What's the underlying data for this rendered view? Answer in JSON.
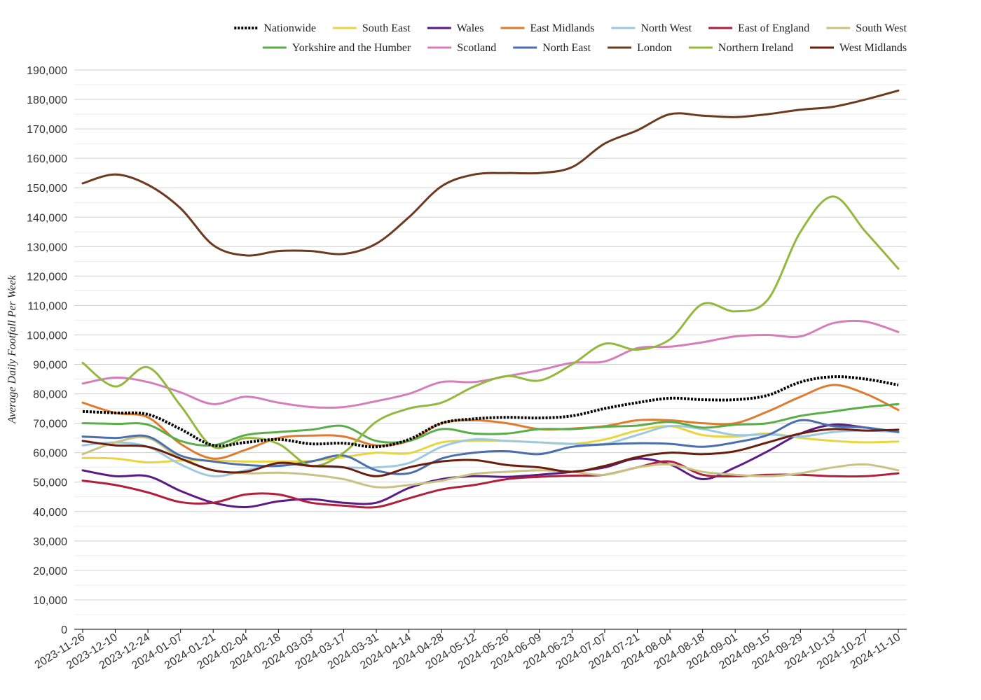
{
  "chart_data": {
    "type": "line",
    "ylabel": "Average Daily Footfall Per Week",
    "ylim": [
      0,
      190000
    ],
    "yticks": [
      0,
      10000,
      20000,
      30000,
      40000,
      50000,
      60000,
      70000,
      80000,
      90000,
      100000,
      110000,
      120000,
      130000,
      140000,
      150000,
      160000,
      170000,
      180000,
      190000
    ],
    "ytick_labels": [
      "0",
      "10,000",
      "20,000",
      "30,000",
      "40,000",
      "50,000",
      "60,000",
      "70,000",
      "80,000",
      "90,000",
      "100,000",
      "110,000",
      "120,000",
      "130,000",
      "140,000",
      "150,000",
      "160,000",
      "170,000",
      "180,000",
      "190,000"
    ],
    "xlim": [
      "2023-11-26",
      "2024-11-10"
    ],
    "xtick_labels": [
      "2023-11-26",
      "2023-12-10",
      "2023-12-24",
      "2024-01-07",
      "2024-01-21",
      "2024-02-04",
      "2024-02-18",
      "2024-03-03",
      "2024-03-17",
      "2024-03-31",
      "2024-04-14",
      "2024-04-28",
      "2024-05-12",
      "2024-05-26",
      "2024-06-09",
      "2024-06-23",
      "2024-07-07",
      "2024-07-21",
      "2024-08-04",
      "2024-08-18",
      "2024-09-01",
      "2024-09-15",
      "2024-09-29",
      "2024-10-13",
      "2024-10-27",
      "2024-11-10"
    ],
    "grid": true,
    "legend_position": "top",
    "series": [
      {
        "name": "Nationwide",
        "color": "#000000",
        "dashed": true,
        "x": [
          "2023-11-26",
          "2023-12-10",
          "2023-12-24",
          "2024-01-07",
          "2024-01-21",
          "2024-02-04",
          "2024-02-18",
          "2024-03-03",
          "2024-03-17",
          "2024-03-31",
          "2024-04-14",
          "2024-04-28",
          "2024-05-12",
          "2024-05-26",
          "2024-06-09",
          "2024-06-23",
          "2024-07-07",
          "2024-07-21",
          "2024-08-04",
          "2024-08-18",
          "2024-09-01",
          "2024-09-15",
          "2024-09-29",
          "2024-10-13",
          "2024-10-27",
          "2024-11-10"
        ],
        "values": [
          74000,
          73500,
          73000,
          68000,
          62500,
          63500,
          64500,
          63000,
          63200,
          62000,
          64500,
          70000,
          71500,
          72000,
          71800,
          72500,
          75000,
          77000,
          78500,
          78000,
          78000,
          79500,
          84000,
          85800,
          85000,
          83000
        ]
      },
      {
        "name": "South East",
        "color": "#e8d540",
        "x": [
          "2023-11-26",
          "2023-12-10",
          "2023-12-24",
          "2024-01-07",
          "2024-01-21",
          "2024-02-04",
          "2024-02-18",
          "2024-03-03",
          "2024-03-17",
          "2024-03-31",
          "2024-04-14",
          "2024-04-28",
          "2024-05-12",
          "2024-05-26",
          "2024-06-09",
          "2024-06-23",
          "2024-07-07",
          "2024-07-21",
          "2024-08-04",
          "2024-08-18",
          "2024-09-01",
          "2024-09-15",
          "2024-09-29",
          "2024-10-13",
          "2024-10-27",
          "2024-11-10"
        ],
        "values": [
          58200,
          58000,
          56700,
          57300,
          57300,
          57000,
          57000,
          57200,
          58500,
          60000,
          59800,
          63500,
          64000,
          64000,
          63500,
          63000,
          64500,
          67500,
          69000,
          66000,
          65500,
          66500,
          65000,
          64000,
          63500,
          63800
        ]
      },
      {
        "name": "Wales",
        "color": "#5b1a84",
        "x": [
          "2023-11-26",
          "2023-12-10",
          "2023-12-24",
          "2024-01-07",
          "2024-01-21",
          "2024-02-04",
          "2024-02-18",
          "2024-03-03",
          "2024-03-17",
          "2024-03-31",
          "2024-04-14",
          "2024-04-28",
          "2024-05-12",
          "2024-05-26",
          "2024-06-09",
          "2024-06-23",
          "2024-07-07",
          "2024-07-21",
          "2024-08-04",
          "2024-08-18",
          "2024-09-01",
          "2024-09-15",
          "2024-09-29",
          "2024-10-13",
          "2024-10-27",
          "2024-11-10"
        ],
        "values": [
          54000,
          52000,
          52000,
          47000,
          43000,
          41500,
          43500,
          44200,
          43000,
          43000,
          48000,
          51000,
          52000,
          51800,
          52500,
          53500,
          55000,
          58000,
          56000,
          51000,
          55000,
          60500,
          66500,
          69500,
          68500,
          67000
        ]
      },
      {
        "name": "East Midlands",
        "color": "#e07a2e",
        "x": [
          "2023-11-26",
          "2023-12-10",
          "2023-12-24",
          "2024-01-07",
          "2024-01-21",
          "2024-02-04",
          "2024-02-18",
          "2024-03-03",
          "2024-03-17",
          "2024-03-31",
          "2024-04-14",
          "2024-04-28",
          "2024-05-12",
          "2024-05-26",
          "2024-06-09",
          "2024-06-23",
          "2024-07-07",
          "2024-07-21",
          "2024-08-04",
          "2024-08-18",
          "2024-09-01",
          "2024-09-15",
          "2024-09-29",
          "2024-10-13",
          "2024-10-27",
          "2024-11-10"
        ],
        "values": [
          77000,
          73500,
          72000,
          63000,
          58000,
          61000,
          65000,
          65800,
          65500,
          62500,
          64000,
          70000,
          71000,
          70000,
          68000,
          68200,
          69000,
          71000,
          71000,
          70000,
          70000,
          74000,
          79000,
          83000,
          80000,
          74500
        ]
      },
      {
        "name": "North West",
        "color": "#9dc8e0",
        "x": [
          "2023-11-26",
          "2023-12-10",
          "2023-12-24",
          "2024-01-07",
          "2024-01-21",
          "2024-02-04",
          "2024-02-18",
          "2024-03-03",
          "2024-03-17",
          "2024-03-31",
          "2024-04-14",
          "2024-04-28",
          "2024-05-12",
          "2024-05-26",
          "2024-06-09",
          "2024-06-23",
          "2024-07-07",
          "2024-07-21",
          "2024-08-04",
          "2024-08-18",
          "2024-09-01",
          "2024-09-15",
          "2024-09-29",
          "2024-10-13",
          "2024-10-27",
          "2024-11-10"
        ],
        "values": [
          62500,
          63500,
          62000,
          56000,
          52000,
          54000,
          56000,
          55500,
          55000,
          55000,
          56500,
          62000,
          64500,
          64000,
          63500,
          63000,
          63000,
          66000,
          69000,
          68000,
          66000,
          66200,
          65500,
          67000,
          67500,
          67000
        ]
      },
      {
        "name": "East of England",
        "color": "#b0203c",
        "x": [
          "2023-11-26",
          "2023-12-10",
          "2023-12-24",
          "2024-01-07",
          "2024-01-21",
          "2024-02-04",
          "2024-02-18",
          "2024-03-03",
          "2024-03-17",
          "2024-03-31",
          "2024-04-14",
          "2024-04-28",
          "2024-05-12",
          "2024-05-26",
          "2024-06-09",
          "2024-06-23",
          "2024-07-07",
          "2024-07-21",
          "2024-08-04",
          "2024-08-18",
          "2024-09-01",
          "2024-09-15",
          "2024-09-29",
          "2024-10-13",
          "2024-10-27",
          "2024-11-10"
        ],
        "values": [
          50500,
          49000,
          46500,
          43200,
          43000,
          45800,
          45800,
          43000,
          42000,
          41500,
          44500,
          47500,
          49000,
          51000,
          51800,
          52200,
          52500,
          55000,
          57000,
          52500,
          52000,
          52500,
          52500,
          52000,
          52000,
          53000
        ]
      },
      {
        "name": "South West",
        "color": "#c8c284",
        "x": [
          "2023-11-26",
          "2023-12-10",
          "2023-12-24",
          "2024-01-07",
          "2024-01-21",
          "2024-02-04",
          "2024-02-18",
          "2024-03-03",
          "2024-03-17",
          "2024-03-31",
          "2024-04-14",
          "2024-04-28",
          "2024-05-12",
          "2024-05-26",
          "2024-06-09",
          "2024-06-23",
          "2024-07-07",
          "2024-07-21",
          "2024-08-04",
          "2024-08-18",
          "2024-09-01",
          "2024-09-15",
          "2024-09-29",
          "2024-10-13",
          "2024-10-27",
          "2024-11-10"
        ],
        "values": [
          59500,
          63500,
          65000,
          58000,
          54000,
          53000,
          53200,
          52500,
          51000,
          48300,
          49000,
          50500,
          52800,
          53500,
          54000,
          53500,
          52500,
          55000,
          56000,
          53500,
          52500,
          52000,
          53000,
          55000,
          56000,
          54000
        ]
      },
      {
        "name": "Yorkshire and the Humber",
        "color": "#5aae4a",
        "x": [
          "2023-11-26",
          "2023-12-10",
          "2023-12-24",
          "2024-01-07",
          "2024-01-21",
          "2024-02-04",
          "2024-02-18",
          "2024-03-03",
          "2024-03-17",
          "2024-03-31",
          "2024-04-14",
          "2024-04-28",
          "2024-05-12",
          "2024-05-26",
          "2024-06-09",
          "2024-06-23",
          "2024-07-07",
          "2024-07-21",
          "2024-08-04",
          "2024-08-18",
          "2024-09-01",
          "2024-09-15",
          "2024-09-29",
          "2024-10-13",
          "2024-10-27",
          "2024-11-10"
        ],
        "values": [
          70000,
          69800,
          69500,
          64000,
          62500,
          66000,
          67000,
          67800,
          69000,
          64000,
          64000,
          68000,
          66500,
          66500,
          68000,
          68000,
          68800,
          69200,
          70500,
          68500,
          69500,
          70000,
          72500,
          74000,
          75500,
          76500
        ]
      },
      {
        "name": "Scotland",
        "color": "#d47fb9",
        "x": [
          "2023-11-26",
          "2023-12-10",
          "2023-12-24",
          "2024-01-07",
          "2024-01-21",
          "2024-02-04",
          "2024-02-18",
          "2024-03-03",
          "2024-03-17",
          "2024-03-31",
          "2024-04-14",
          "2024-04-28",
          "2024-05-12",
          "2024-05-26",
          "2024-06-09",
          "2024-06-23",
          "2024-07-07",
          "2024-07-21",
          "2024-08-04",
          "2024-08-18",
          "2024-09-01",
          "2024-09-15",
          "2024-09-29",
          "2024-10-13",
          "2024-10-27",
          "2024-11-10"
        ],
        "values": [
          83500,
          85500,
          84000,
          80500,
          76500,
          79000,
          77000,
          75500,
          75500,
          77500,
          80000,
          84000,
          84000,
          86000,
          88000,
          90500,
          91000,
          95500,
          96000,
          97500,
          99500,
          100000,
          99500,
          104000,
          104500,
          101000
        ]
      },
      {
        "name": "North East",
        "color": "#4a6fac",
        "x": [
          "2023-11-26",
          "2023-12-10",
          "2023-12-24",
          "2024-01-07",
          "2024-01-21",
          "2024-02-04",
          "2024-02-18",
          "2024-03-03",
          "2024-03-17",
          "2024-03-31",
          "2024-04-14",
          "2024-04-28",
          "2024-05-12",
          "2024-05-26",
          "2024-06-09",
          "2024-06-23",
          "2024-07-07",
          "2024-07-21",
          "2024-08-04",
          "2024-08-18",
          "2024-09-01",
          "2024-09-15",
          "2024-09-29",
          "2024-10-13",
          "2024-10-27",
          "2024-11-10"
        ],
        "values": [
          65500,
          65000,
          65500,
          59000,
          57000,
          55800,
          55500,
          57000,
          59000,
          54000,
          53000,
          58000,
          60000,
          60500,
          59500,
          62000,
          62800,
          63200,
          63000,
          62000,
          63500,
          66000,
          71000,
          69000,
          68500,
          67000
        ]
      },
      {
        "name": "London",
        "color": "#6b3a1f",
        "x": [
          "2023-11-26",
          "2023-12-10",
          "2023-12-24",
          "2024-01-07",
          "2024-01-21",
          "2024-02-04",
          "2024-02-18",
          "2024-03-03",
          "2024-03-17",
          "2024-03-31",
          "2024-04-14",
          "2024-04-28",
          "2024-05-12",
          "2024-05-26",
          "2024-06-09",
          "2024-06-23",
          "2024-07-07",
          "2024-07-21",
          "2024-08-04",
          "2024-08-18",
          "2024-09-01",
          "2024-09-15",
          "2024-09-29",
          "2024-10-13",
          "2024-10-27",
          "2024-11-10"
        ],
        "values": [
          151500,
          154500,
          151000,
          143000,
          130500,
          127000,
          128500,
          128500,
          127500,
          131000,
          140000,
          150500,
          154500,
          155000,
          155000,
          157000,
          165000,
          169500,
          175000,
          174500,
          174000,
          175000,
          176500,
          177500,
          180000,
          183000
        ]
      },
      {
        "name": "Northern Ireland",
        "color": "#93b83e",
        "x": [
          "2023-11-26",
          "2023-12-10",
          "2023-12-24",
          "2024-01-07",
          "2024-01-21",
          "2024-02-04",
          "2024-02-18",
          "2024-03-03",
          "2024-03-17",
          "2024-03-31",
          "2024-04-14",
          "2024-04-28",
          "2024-05-12",
          "2024-05-26",
          "2024-06-09",
          "2024-06-23",
          "2024-07-07",
          "2024-07-21",
          "2024-08-04",
          "2024-08-18",
          "2024-09-01",
          "2024-09-15",
          "2024-09-29",
          "2024-10-13",
          "2024-10-27",
          "2024-11-10"
        ],
        "values": [
          90500,
          82500,
          89000,
          76000,
          62000,
          65000,
          63000,
          55500,
          60000,
          70500,
          75000,
          77000,
          82500,
          86000,
          84500,
          90000,
          97000,
          95000,
          98500,
          110500,
          108000,
          112000,
          135000,
          147000,
          135000,
          122500
        ]
      },
      {
        "name": "West Midlands",
        "color": "#6a1e0e",
        "x": [
          "2023-11-26",
          "2023-12-10",
          "2023-12-24",
          "2024-01-07",
          "2024-01-21",
          "2024-02-04",
          "2024-02-18",
          "2024-03-03",
          "2024-03-17",
          "2024-03-31",
          "2024-04-14",
          "2024-04-28",
          "2024-05-12",
          "2024-05-26",
          "2024-06-09",
          "2024-06-23",
          "2024-07-07",
          "2024-07-21",
          "2024-08-04",
          "2024-08-18",
          "2024-09-01",
          "2024-09-15",
          "2024-09-29",
          "2024-10-13",
          "2024-10-27",
          "2024-11-10"
        ],
        "values": [
          64000,
          62500,
          62000,
          58000,
          54000,
          53500,
          56500,
          55500,
          55000,
          52000,
          55000,
          57000,
          57500,
          55800,
          55000,
          53500,
          55500,
          58500,
          60000,
          59500,
          60500,
          63500,
          66500,
          68000,
          67500,
          67800
        ]
      }
    ]
  }
}
